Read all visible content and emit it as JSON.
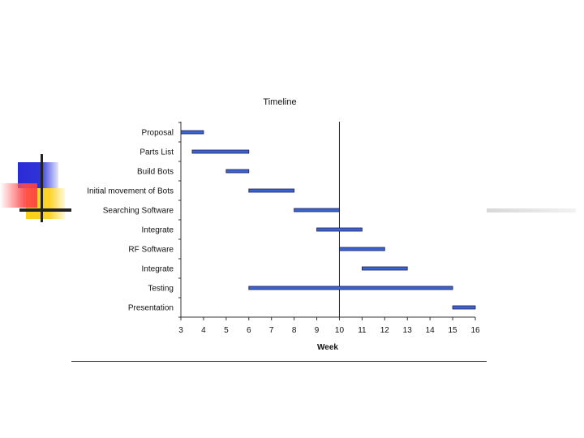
{
  "chart_data": {
    "type": "bar",
    "orientation": "horizontal",
    "style": "gantt",
    "title": "Timeline",
    "xlabel": "Week",
    "ylabel": "",
    "xlim": [
      3,
      16
    ],
    "xticks": [
      3,
      4,
      5,
      6,
      7,
      8,
      9,
      10,
      11,
      12,
      13,
      14,
      15,
      16
    ],
    "reference_line_x": 10,
    "grid": false,
    "bar_color": "#3e63d3",
    "tasks": [
      {
        "label": "Proposal",
        "start": 3,
        "end": 4
      },
      {
        "label": "Parts List",
        "start": 3.5,
        "end": 6
      },
      {
        "label": "Build Bots",
        "start": 5,
        "end": 6
      },
      {
        "label": "Initial movement of Bots",
        "start": 6,
        "end": 8
      },
      {
        "label": "Searching Software",
        "start": 8,
        "end": 10
      },
      {
        "label": "Integrate",
        "start": 9,
        "end": 11
      },
      {
        "label": "RF Software",
        "start": 10,
        "end": 12
      },
      {
        "label": "Integrate",
        "start": 11,
        "end": 13
      },
      {
        "label": "Testing",
        "start": 6,
        "end": 15
      },
      {
        "label": "Presentation",
        "start": 15,
        "end": 16
      }
    ]
  },
  "decor": {
    "square_blue": "#2f34d8",
    "square_yellow": "#f7d21a",
    "square_red": "#ff4444"
  }
}
